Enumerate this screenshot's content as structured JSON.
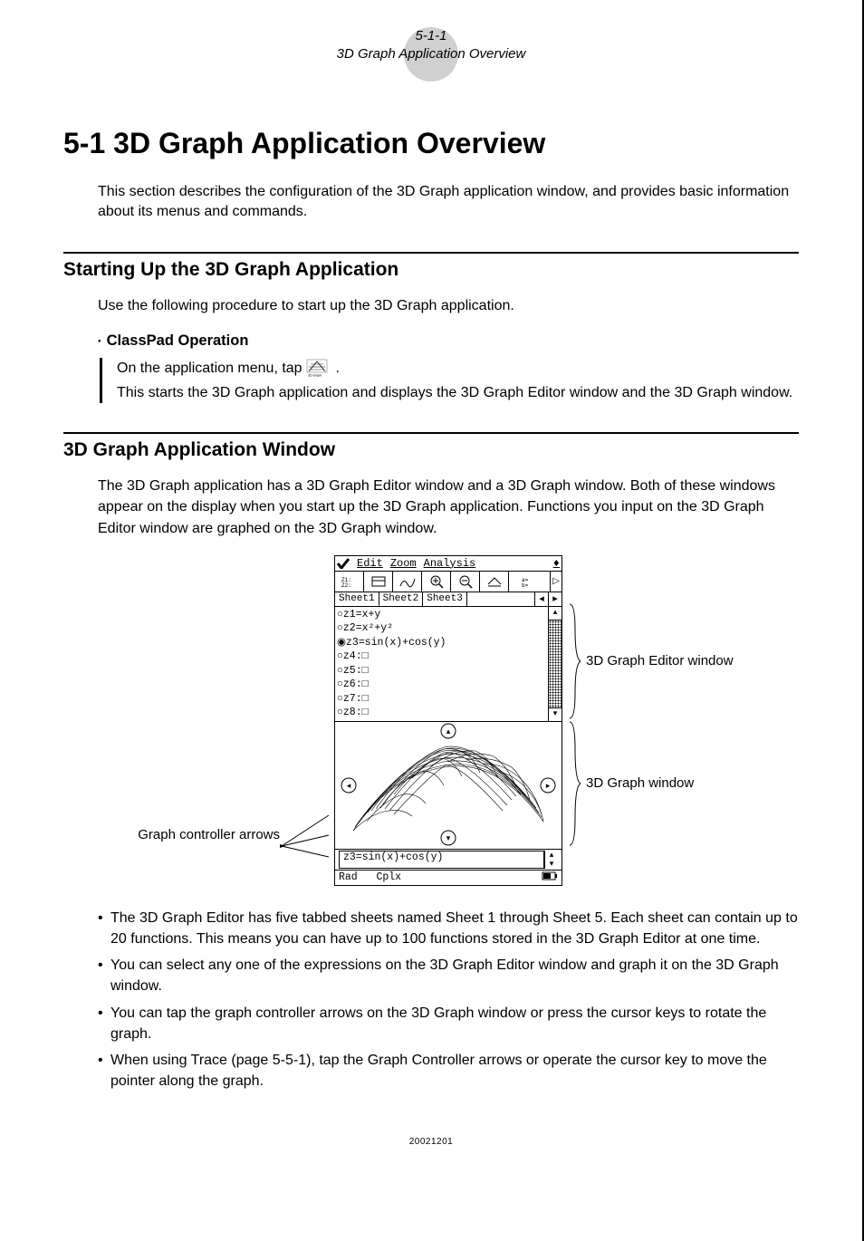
{
  "header": {
    "page_number": "5-1-1",
    "running_title": "3D Graph Application Overview"
  },
  "chapter": {
    "title": "5-1 3D Graph Application Overview",
    "intro": "This section describes the configuration of the 3D Graph application window, and provides basic information about its menus and commands."
  },
  "section1": {
    "heading": "Starting Up the 3D Graph Application",
    "intro": "Use the following procedure to start up the 3D Graph application.",
    "proc_heading": "ClassPad Operation",
    "step1_pre": "On the application menu, tap ",
    "step1_post": ".",
    "step2": "This starts the 3D Graph application and displays the 3D Graph Editor window and the 3D Graph window."
  },
  "section2": {
    "heading": "3D Graph Application Window",
    "intro": "The 3D Graph application has a 3D Graph Editor window and a 3D Graph window. Both of these windows appear on the display when you start up the 3D Graph application. Functions you input on the 3D Graph Editor window are graphed on the 3D Graph window."
  },
  "diagram": {
    "left_label": "Graph controller arrows",
    "right_label_editor": "3D Graph Editor window",
    "right_label_graph": "3D Graph window",
    "menubar": {
      "edit": "Edit",
      "zoom": "Zoom",
      "analysis": "Analysis"
    },
    "toolbar_count": 7,
    "tabs": [
      "Sheet1",
      "Sheet2",
      "Sheet3"
    ],
    "editor_lines": [
      "○z1=x+y",
      "○z2=x²+y²",
      "◉z3=sin(x)+cos(y)",
      "○z4:□",
      "○z5:□",
      "○z6:□",
      "○z7:□",
      "○z8:□"
    ],
    "formula": "z3=sin(x)+cos(y)",
    "status_left": "Rad",
    "status_mid": "Cplx",
    "status_right_icon": "battery"
  },
  "bullets": [
    "The 3D Graph Editor has five tabbed sheets named Sheet 1 through Sheet 5. Each sheet can contain up to 20 functions. This means you can have up to 100 functions stored in the 3D Graph Editor at one time.",
    "You can select any one of the expressions on the 3D Graph Editor window and graph it on the 3D Graph window.",
    "You can tap the graph controller arrows on the 3D Graph window or press the cursor keys to rotate the graph.",
    "When using Trace (page 5-5-1), tap the Graph Controller arrows or operate the cursor key to move the pointer along the graph."
  ],
  "footer_id": "20021201"
}
